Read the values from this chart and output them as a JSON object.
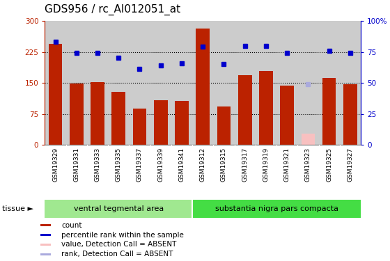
{
  "title": "GDS956 / rc_AI012051_at",
  "samples": [
    "GSM19329",
    "GSM19331",
    "GSM19333",
    "GSM19335",
    "GSM19337",
    "GSM19339",
    "GSM19341",
    "GSM19312",
    "GSM19315",
    "GSM19317",
    "GSM19319",
    "GSM19321",
    "GSM19323",
    "GSM19325",
    "GSM19327"
  ],
  "bar_values": [
    245,
    148,
    152,
    128,
    88,
    108,
    107,
    282,
    93,
    168,
    178,
    143,
    28,
    162,
    147
  ],
  "bar_absent": [
    false,
    false,
    false,
    false,
    false,
    false,
    false,
    false,
    false,
    false,
    false,
    false,
    true,
    false,
    false
  ],
  "dot_values": [
    83,
    74,
    74,
    70,
    61,
    64,
    66,
    79,
    65,
    80,
    80,
    74,
    49,
    76,
    74
  ],
  "dot_absent": [
    false,
    false,
    false,
    false,
    false,
    false,
    false,
    false,
    false,
    false,
    false,
    false,
    true,
    false,
    false
  ],
  "ylim_left": [
    0,
    300
  ],
  "ylim_right": [
    0,
    100
  ],
  "yticks_left": [
    0,
    75,
    150,
    225,
    300
  ],
  "yticks_right": [
    0,
    25,
    50,
    75,
    100
  ],
  "ytick_labels_left": [
    "0",
    "75",
    "150",
    "225",
    "300"
  ],
  "ytick_labels_right": [
    "0",
    "25",
    "50",
    "75",
    "100%"
  ],
  "group1_label": "ventral tegmental area",
  "group2_label": "substantia nigra pars compacta",
  "group1_count": 7,
  "group2_count": 8,
  "bar_color": "#bb2200",
  "bar_absent_color": "#f8c0c0",
  "dot_color": "#0000cc",
  "dot_absent_color": "#aaaadd",
  "tissue_label": "tissue",
  "group_bg1_color": "#a0e890",
  "group_bg2_color": "#44dd44",
  "legend_items": [
    "count",
    "percentile rank within the sample",
    "value, Detection Call = ABSENT",
    "rank, Detection Call = ABSENT"
  ],
  "legend_colors": [
    "#bb2200",
    "#0000cc",
    "#f8c0c0",
    "#aaaadd"
  ],
  "title_fontsize": 11,
  "tick_fontsize": 7.5,
  "label_fontsize": 8,
  "background_color": "#cccccc",
  "fig_bg": "#ffffff",
  "xlab_bg": "#cccccc",
  "xlab_border": "#aaaaaa"
}
